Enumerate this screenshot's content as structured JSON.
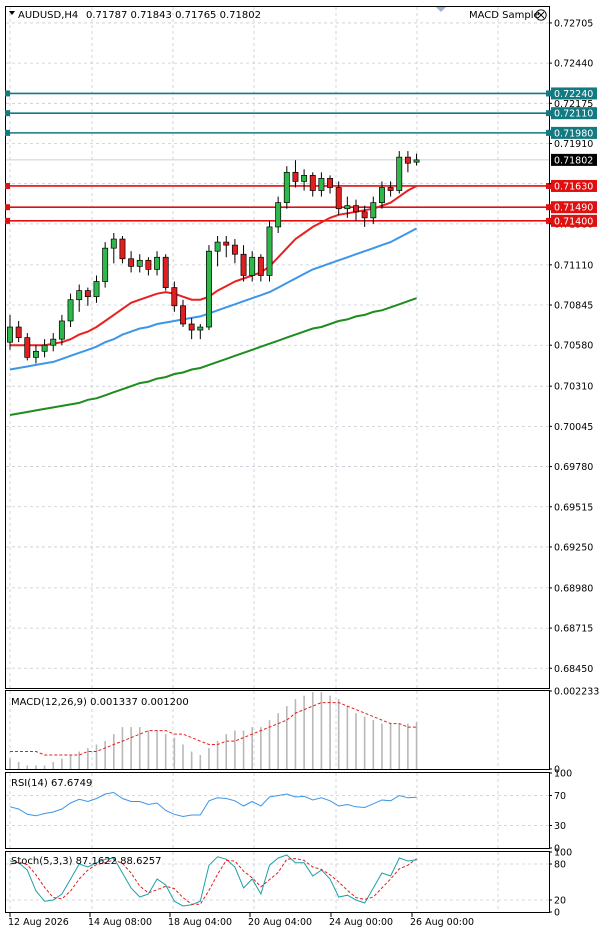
{
  "header": {
    "symbol": "AUDUSD,H4",
    "ohlc": "0.71787 0.71843 0.71765 0.71802",
    "indicator_name": "MACD Sample"
  },
  "chart_data": [
    {
      "type": "candlestick",
      "name": "main",
      "y_ticks": [
        "0.72705",
        "0.72440",
        "0.72175",
        "0.71910",
        "0.71645",
        "0.71380",
        "0.71110",
        "0.70845",
        "0.70580",
        "0.70310",
        "0.70045",
        "0.69780",
        "0.69515",
        "0.69250",
        "0.68980",
        "0.68715",
        "0.68450"
      ],
      "ylim": [
        0.6832,
        0.7281
      ],
      "x_ticks": [
        "12 Aug 2026",
        "14 Aug 08:00",
        "18 Aug 04:00",
        "20 Aug 04:00",
        "24 Aug 00:00",
        "26 Aug 00:00"
      ],
      "current_price": "0.71802",
      "levels": [
        {
          "value": 0.7224,
          "label": "0.72240",
          "color": "#127a80"
        },
        {
          "value": 0.7211,
          "label": "0.72110",
          "color": "#127a80"
        },
        {
          "value": 0.7198,
          "label": "0.71980",
          "color": "#127a80"
        },
        {
          "value": 0.7163,
          "label": "0.71630",
          "color": "#e01010"
        },
        {
          "value": 0.7149,
          "label": "0.71490",
          "color": "#e01010"
        },
        {
          "value": 0.714,
          "label": "0.71400",
          "color": "#e01010"
        }
      ],
      "candles": [
        [
          0.706,
          0.7078,
          0.7055,
          0.707
        ],
        [
          0.707,
          0.7074,
          0.706,
          0.7063
        ],
        [
          0.7063,
          0.7066,
          0.7048,
          0.705
        ],
        [
          0.705,
          0.7058,
          0.7046,
          0.7054
        ],
        [
          0.7054,
          0.7062,
          0.705,
          0.7058
        ],
        [
          0.7058,
          0.7066,
          0.7054,
          0.7062
        ],
        [
          0.7062,
          0.7078,
          0.7058,
          0.7074
        ],
        [
          0.7074,
          0.7092,
          0.707,
          0.7088
        ],
        [
          0.7088,
          0.7098,
          0.708,
          0.7094
        ],
        [
          0.7094,
          0.7096,
          0.7084,
          0.709
        ],
        [
          0.709,
          0.7104,
          0.7086,
          0.71
        ],
        [
          0.71,
          0.7126,
          0.7096,
          0.7122
        ],
        [
          0.7122,
          0.7132,
          0.7112,
          0.7128
        ],
        [
          0.7128,
          0.713,
          0.7112,
          0.7115
        ],
        [
          0.7115,
          0.712,
          0.7106,
          0.711
        ],
        [
          0.711,
          0.7118,
          0.7106,
          0.7114
        ],
        [
          0.7114,
          0.7116,
          0.7104,
          0.7108
        ],
        [
          0.7108,
          0.712,
          0.7104,
          0.7116
        ],
        [
          0.7116,
          0.7118,
          0.7094,
          0.7096
        ],
        [
          0.7096,
          0.71,
          0.708,
          0.7084
        ],
        [
          0.7084,
          0.7088,
          0.707,
          0.7072
        ],
        [
          0.7072,
          0.7076,
          0.7062,
          0.7068
        ],
        [
          0.7068,
          0.7072,
          0.7062,
          0.707
        ],
        [
          0.707,
          0.7124,
          0.7068,
          0.712
        ],
        [
          0.712,
          0.713,
          0.711,
          0.7126
        ],
        [
          0.7126,
          0.713,
          0.7116,
          0.7124
        ],
        [
          0.7124,
          0.7128,
          0.7112,
          0.7118
        ],
        [
          0.7118,
          0.7124,
          0.71,
          0.7104
        ],
        [
          0.7104,
          0.712,
          0.71,
          0.7116
        ],
        [
          0.7116,
          0.7118,
          0.71,
          0.7104
        ],
        [
          0.7104,
          0.714,
          0.71,
          0.7136
        ],
        [
          0.7136,
          0.7156,
          0.7132,
          0.7152
        ],
        [
          0.7152,
          0.7176,
          0.7148,
          0.7172
        ],
        [
          0.7172,
          0.718,
          0.7162,
          0.7166
        ],
        [
          0.7166,
          0.7174,
          0.716,
          0.717
        ],
        [
          0.717,
          0.7172,
          0.7156,
          0.716
        ],
        [
          0.716,
          0.7172,
          0.7156,
          0.7168
        ],
        [
          0.7168,
          0.717,
          0.7158,
          0.7162
        ],
        [
          0.7162,
          0.7166,
          0.7144,
          0.7148
        ],
        [
          0.7148,
          0.7156,
          0.7142,
          0.715
        ],
        [
          0.715,
          0.7154,
          0.714,
          0.7146
        ],
        [
          0.7146,
          0.715,
          0.7136,
          0.7142
        ],
        [
          0.7142,
          0.7156,
          0.7138,
          0.7152
        ],
        [
          0.7152,
          0.7166,
          0.7148,
          0.7162
        ],
        [
          0.7162,
          0.7166,
          0.7156,
          0.716
        ],
        [
          0.716,
          0.7186,
          0.7158,
          0.7182
        ],
        [
          0.7182,
          0.7186,
          0.7172,
          0.7178
        ],
        [
          0.71787,
          0.71843,
          0.71765,
          0.71802
        ]
      ],
      "moving_averages": [
        {
          "color": "#e82020",
          "values": [
            0.7058,
            0.7058,
            0.7058,
            0.7058,
            0.7058,
            0.7059,
            0.706,
            0.7062,
            0.7065,
            0.7067,
            0.707,
            0.7074,
            0.7078,
            0.7082,
            0.7086,
            0.7088,
            0.709,
            0.7092,
            0.7093,
            0.7092,
            0.709,
            0.7088,
            0.7088,
            0.709,
            0.7094,
            0.7097,
            0.71,
            0.7102,
            0.7104,
            0.7106,
            0.711,
            0.7116,
            0.7122,
            0.7128,
            0.7132,
            0.7136,
            0.7139,
            0.7142,
            0.7144,
            0.7145,
            0.7146,
            0.7147,
            0.7148,
            0.715,
            0.7152,
            0.7156,
            0.716,
            0.7163
          ]
        },
        {
          "color": "#3d96e8",
          "values": [
            0.7042,
            0.7043,
            0.7044,
            0.7045,
            0.7046,
            0.7047,
            0.7049,
            0.7051,
            0.7053,
            0.7055,
            0.7057,
            0.706,
            0.7062,
            0.7065,
            0.7067,
            0.7069,
            0.707,
            0.7072,
            0.7073,
            0.7074,
            0.7075,
            0.7076,
            0.7077,
            0.7079,
            0.7081,
            0.7083,
            0.7085,
            0.7087,
            0.7089,
            0.7091,
            0.7093,
            0.7096,
            0.7099,
            0.7102,
            0.7105,
            0.7108,
            0.711,
            0.7112,
            0.7114,
            0.7116,
            0.7118,
            0.712,
            0.7122,
            0.7124,
            0.7126,
            0.7129,
            0.7132,
            0.7135
          ]
        },
        {
          "color": "#1e8c1e",
          "values": [
            0.7012,
            0.7013,
            0.7014,
            0.7015,
            0.7016,
            0.7017,
            0.7018,
            0.7019,
            0.702,
            0.7022,
            0.7023,
            0.7025,
            0.7027,
            0.7029,
            0.7031,
            0.7033,
            0.7034,
            0.7036,
            0.7037,
            0.7039,
            0.704,
            0.7042,
            0.7043,
            0.7045,
            0.7047,
            0.7049,
            0.7051,
            0.7053,
            0.7055,
            0.7057,
            0.7059,
            0.7061,
            0.7063,
            0.7065,
            0.7067,
            0.7069,
            0.707,
            0.7072,
            0.7074,
            0.7075,
            0.7077,
            0.7078,
            0.708,
            0.7081,
            0.7083,
            0.7085,
            0.7087,
            0.7089
          ]
        }
      ]
    },
    {
      "type": "bar",
      "name": "macd",
      "title": "MACD(12,26,9) 0.001337 0.001200",
      "y_ticks": [
        "0.002233",
        "0"
      ],
      "ylim": [
        0,
        0.002233
      ],
      "histogram": [
        0.0003,
        0.0002,
        0.0001,
        0.0001,
        0.0001,
        0.0002,
        0.0003,
        0.0004,
        0.0005,
        0.0006,
        0.0007,
        0.0008,
        0.001,
        0.0012,
        0.0012,
        0.0012,
        0.0011,
        0.0011,
        0.001,
        0.0009,
        0.0007,
        0.0005,
        0.0004,
        0.0006,
        0.0008,
        0.001,
        0.0011,
        0.0011,
        0.0012,
        0.0012,
        0.0014,
        0.0016,
        0.0018,
        0.002,
        0.0021,
        0.0022,
        0.0022,
        0.0021,
        0.002,
        0.0018,
        0.0016,
        0.0015,
        0.0014,
        0.0013,
        0.0013,
        0.0013,
        0.0013,
        0.00134
      ],
      "signal": [
        0.0005,
        0.0005,
        0.0005,
        0.0005,
        0.0004,
        0.0004,
        0.0004,
        0.0004,
        0.0004,
        0.0005,
        0.0005,
        0.0006,
        0.0007,
        0.0008,
        0.0009,
        0.001,
        0.0011,
        0.0011,
        0.0011,
        0.001,
        0.001,
        0.0009,
        0.0008,
        0.0007,
        0.0007,
        0.0008,
        0.0008,
        0.0009,
        0.001,
        0.0011,
        0.0012,
        0.0013,
        0.0014,
        0.0016,
        0.0017,
        0.0018,
        0.0019,
        0.0019,
        0.0019,
        0.0018,
        0.0017,
        0.0016,
        0.0015,
        0.0014,
        0.0013,
        0.0013,
        0.0012,
        0.0012
      ]
    },
    {
      "type": "line",
      "name": "rsi",
      "title": "RSI(14) 67.6749",
      "y_ticks": [
        "100",
        "70",
        "30",
        "0"
      ],
      "ylim": [
        0,
        100
      ],
      "values": [
        55,
        52,
        45,
        43,
        46,
        48,
        52,
        60,
        65,
        62,
        66,
        72,
        74,
        66,
        62,
        62,
        58,
        60,
        50,
        45,
        42,
        44,
        44,
        63,
        67,
        66,
        63,
        56,
        62,
        56,
        68,
        70,
        72,
        68,
        69,
        64,
        67,
        63,
        56,
        58,
        55,
        54,
        59,
        64,
        63,
        70,
        67,
        67.7
      ]
    },
    {
      "type": "line",
      "name": "stochastic",
      "title": "Stoch(5,3,3) 87.1622 88.6257",
      "y_ticks": [
        "100",
        "80",
        "20",
        "0"
      ],
      "ylim": [
        0,
        100
      ],
      "k_values": [
        85,
        82,
        70,
        35,
        18,
        20,
        30,
        55,
        80,
        75,
        82,
        88,
        90,
        65,
        40,
        25,
        30,
        55,
        45,
        18,
        10,
        12,
        18,
        78,
        92,
        88,
        75,
        40,
        55,
        30,
        78,
        90,
        95,
        82,
        82,
        60,
        70,
        55,
        25,
        28,
        20,
        15,
        40,
        65,
        60,
        90,
        85,
        87.2
      ],
      "d_values": [
        80,
        83,
        79,
        62,
        41,
        24,
        22,
        35,
        55,
        70,
        79,
        82,
        87,
        81,
        65,
        43,
        32,
        37,
        43,
        39,
        24,
        13,
        13,
        36,
        63,
        86,
        85,
        68,
        57,
        42,
        54,
        66,
        88,
        89,
        86,
        75,
        71,
        62,
        50,
        36,
        24,
        21,
        25,
        40,
        55,
        72,
        78,
        88.6
      ]
    }
  ]
}
